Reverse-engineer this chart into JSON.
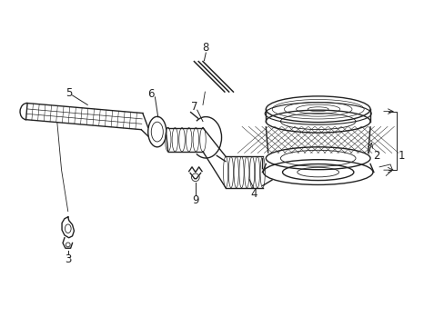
{
  "bg_color": "#ffffff",
  "line_color": "#222222",
  "lw": 1.0,
  "tlw": 0.6,
  "figsize": [
    4.89,
    3.6
  ],
  "dpi": 100,
  "xlim": [
    0,
    10
  ],
  "ylim": [
    0,
    7.5
  ]
}
